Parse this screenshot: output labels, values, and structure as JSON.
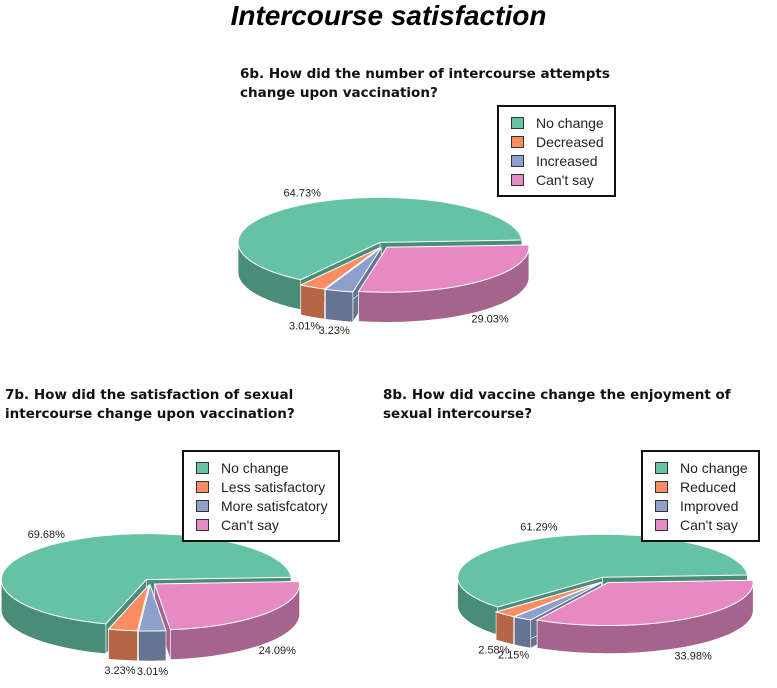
{
  "title": "Intercourse satisfaction",
  "chart_data": [
    {
      "type": "pie",
      "title": "6b. How did the number of intercourse attempts change upon vaccination?",
      "categories": [
        "No change",
        "Decreased",
        "Increased",
        "Can't say"
      ],
      "values": [
        64.73,
        3.01,
        3.23,
        29.03
      ],
      "value_labels": [
        "64.73%",
        "3.01%",
        "3.23%",
        "29.03%"
      ],
      "colors": [
        "#66c2a5",
        "#fc8d62",
        "#8da0cb",
        "#e78ac3"
      ],
      "legend": "upper right"
    },
    {
      "type": "pie",
      "title": "7b. How did the satisfaction of sexual intercourse change upon vaccination?",
      "categories": [
        "No change",
        "Less satisfactory",
        "More satisfcatory",
        "Can't say"
      ],
      "values": [
        69.68,
        3.23,
        3.01,
        24.09
      ],
      "value_labels": [
        "69.68%",
        "3.23%",
        "3.01%",
        "24.09%"
      ],
      "colors": [
        "#66c2a5",
        "#fc8d62",
        "#8da0cb",
        "#e78ac3"
      ],
      "legend": "upper right"
    },
    {
      "type": "pie",
      "title": "8b. How did vaccine change the enjoyment of sexual intercourse?",
      "categories": [
        "No change",
        "Reduced",
        "Improved",
        "Can't say"
      ],
      "values": [
        61.29,
        2.58,
        2.15,
        33.98
      ],
      "value_labels": [
        "61.29%",
        "2.58%",
        "2.15%",
        "33.98%"
      ],
      "colors": [
        "#66c2a5",
        "#fc8d62",
        "#8da0cb",
        "#e78ac3"
      ],
      "legend": "upper right"
    }
  ]
}
